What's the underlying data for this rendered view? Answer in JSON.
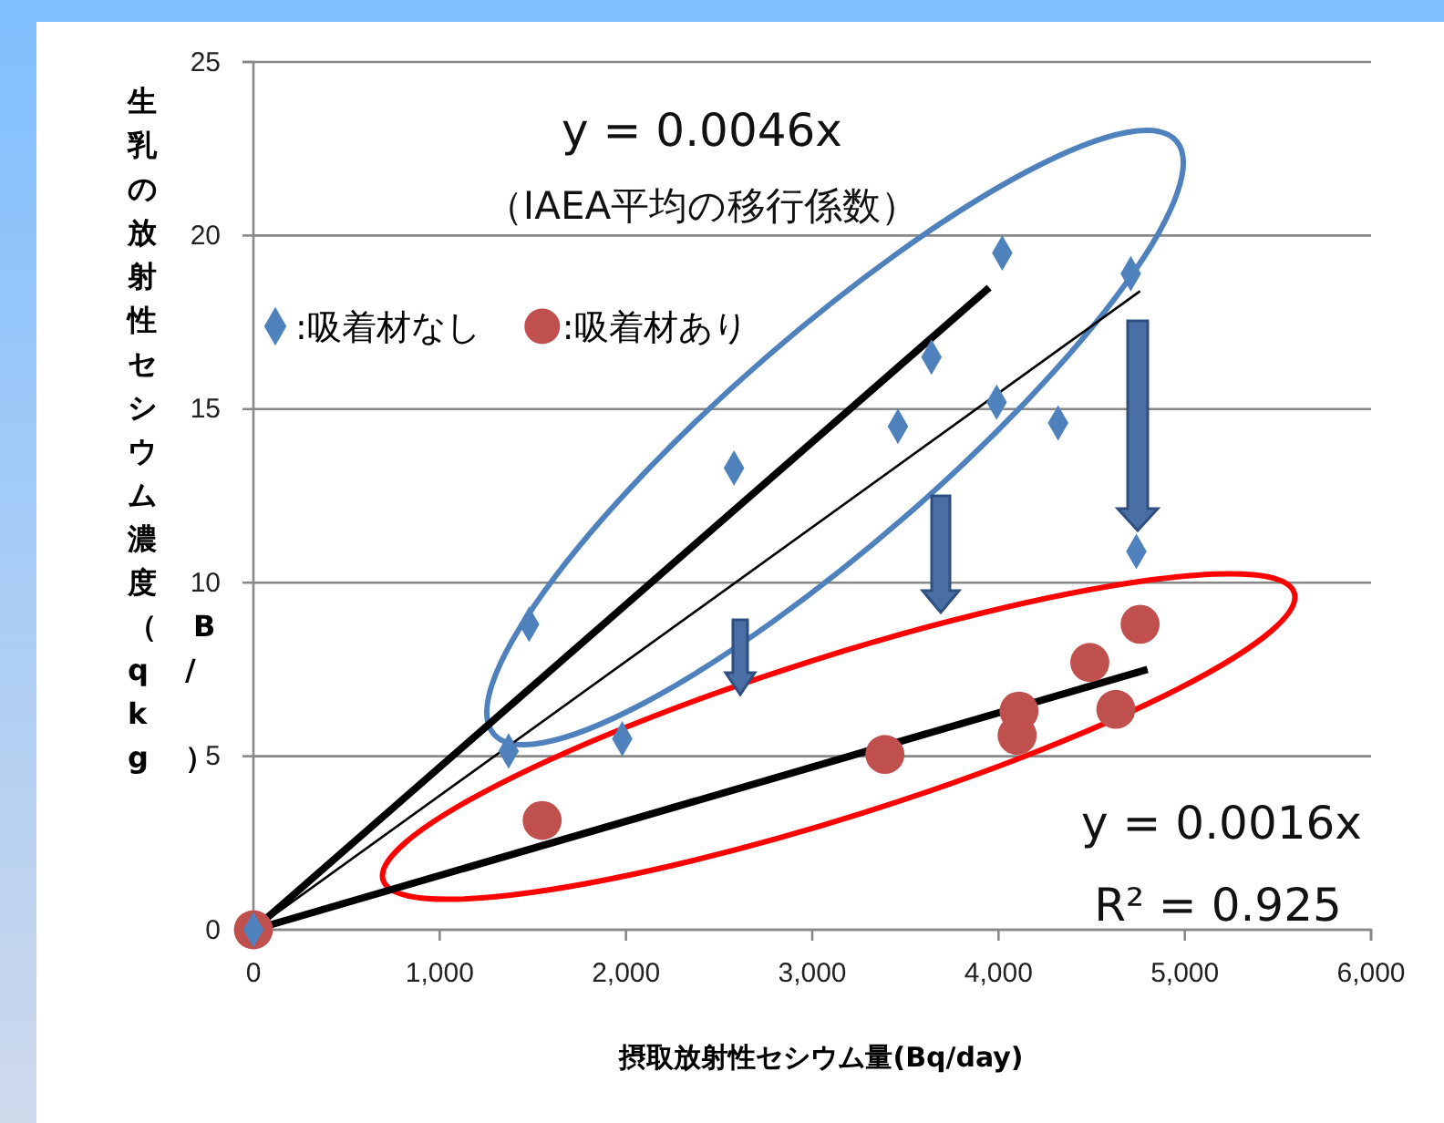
{
  "chart_data": {
    "type": "scatter",
    "xlabel": "摂取放射性セシウム量(Bq/day)",
    "ylabel": "生乳の放射性セシウム濃度（Bq/kg）",
    "xlim": [
      0,
      6000
    ],
    "xticks": [
      {
        "value": 0,
        "label": "0"
      },
      {
        "value": 1000,
        "label": "1,000"
      },
      {
        "value": 2000,
        "label": "2,000"
      },
      {
        "value": 3000,
        "label": "3,000"
      },
      {
        "value": 4000,
        "label": "4,000"
      },
      {
        "value": 5000,
        "label": "5,000"
      },
      {
        "value": 6000,
        "label": "6,000"
      }
    ],
    "ylim": [
      0,
      25
    ],
    "yticks": [
      0,
      5,
      10,
      15,
      20,
      25
    ],
    "grid": "y",
    "legend": "top left",
    "series": [
      {
        "name": ":吸着材なし",
        "color": "#4f81bd",
        "marker": "diamond",
        "x": [
          0,
          1370,
          1480,
          1980,
          2580,
          3460,
          3640,
          3990,
          4020,
          4320,
          4710,
          4740
        ],
        "values": [
          0,
          5.15,
          8.8,
          5.5,
          13.3,
          14.5,
          16.5,
          15.2,
          19.5,
          14.6,
          18.9,
          10.9
        ]
      },
      {
        "name": ":吸着材あり",
        "color": "#c0504d",
        "marker": "circle",
        "x": [
          0,
          1550,
          3390,
          4100,
          4110,
          4490,
          4630,
          4760
        ],
        "values": [
          0,
          3.15,
          5.05,
          5.6,
          6.3,
          7.7,
          6.35,
          8.8
        ]
      },
      {
        "type": "line",
        "color": "#000000",
        "x": [
          0,
          3950
        ],
        "values": [
          0,
          18.5
        ]
      },
      {
        "type": "line",
        "color": "#000000",
        "x": [
          0,
          4760
        ],
        "values": [
          0,
          18.4
        ]
      },
      {
        "type": "line",
        "color": "#000000",
        "x": [
          0,
          4800
        ],
        "values": [
          0,
          7.5
        ]
      }
    ],
    "annotations": [
      "y = 0.0046x",
      "（IAEA平均の移行係数）",
      "y = 0.0016x",
      "R² = 0.925"
    ]
  }
}
